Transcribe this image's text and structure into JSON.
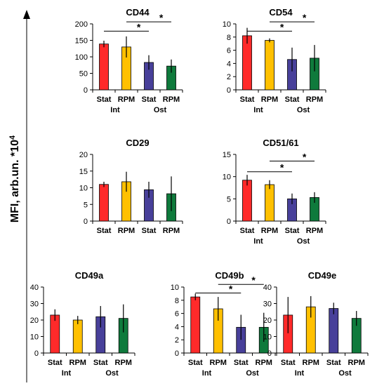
{
  "chart_data": {
    "type": "bar",
    "y_axis_label": "MFI, arb.un. *10",
    "y_axis_label_sup": "4",
    "panels": [
      {
        "title": "CD44",
        "ylim": [
          0,
          200
        ],
        "ticks": [
          0,
          50,
          100,
          150,
          200
        ],
        "categories": [
          "Stat",
          "RPM",
          "Stat",
          "RPM"
        ],
        "groups": [
          "Int",
          "Ost"
        ],
        "values": [
          139,
          130,
          83,
          72
        ],
        "errors": [
          10,
          32,
          22,
          20
        ],
        "significance": [
          {
            "from": 0,
            "to": 2,
            "y": 178,
            "label": "*"
          },
          {
            "from": 1,
            "to": 3,
            "y": 206,
            "label": "*"
          }
        ]
      },
      {
        "title": "CD54",
        "ylim": [
          0,
          10
        ],
        "ticks": [
          0,
          2,
          4,
          6,
          8,
          10
        ],
        "categories": [
          "Stat",
          "RPM",
          "Stat",
          "RPM"
        ],
        "groups": [
          "Int",
          "Ost"
        ],
        "values": [
          8.2,
          7.5,
          4.6,
          4.8
        ],
        "errors": [
          1.2,
          0.3,
          1.8,
          2.0
        ],
        "significance": [
          {
            "from": 0,
            "to": 2,
            "y": 8.9,
            "label": "*"
          },
          {
            "from": 1,
            "to": 3,
            "y": 10.3,
            "label": "*"
          }
        ]
      },
      {
        "title": "CD29",
        "ylim": [
          0,
          20
        ],
        "ticks": [
          0,
          5,
          10,
          15,
          20
        ],
        "categories": [
          "Stat",
          "RPM",
          "Stat",
          "RPM"
        ],
        "groups": [],
        "values": [
          11,
          11.8,
          9.4,
          8.2
        ],
        "errors": [
          0.8,
          3.0,
          2.4,
          5.2
        ],
        "significance": []
      },
      {
        "title": "CD51/61",
        "ylim": [
          0,
          15
        ],
        "ticks": [
          0,
          5,
          10,
          15
        ],
        "categories": [
          "Stat",
          "RPM",
          "Stat",
          "RPM"
        ],
        "groups": [
          "Int",
          "Ost"
        ],
        "values": [
          9.2,
          8.2,
          5.0,
          5.3
        ],
        "errors": [
          1.2,
          1.0,
          1.2,
          1.2
        ],
        "significance": [
          {
            "from": 0,
            "to": 2,
            "y": 11.1,
            "label": "*"
          },
          {
            "from": 1,
            "to": 3,
            "y": 13.5,
            "label": "*"
          }
        ]
      },
      {
        "title": "CD49a",
        "ylim": [
          0,
          40
        ],
        "ticks": [
          0,
          10,
          20,
          30,
          40
        ],
        "categories": [
          "Stat",
          "RPM",
          "Stat",
          "RPM"
        ],
        "groups": [
          "Int",
          "Ost"
        ],
        "values": [
          23,
          20,
          22,
          21
        ],
        "errors": [
          3.5,
          2.5,
          6.5,
          8.5
        ],
        "significance": []
      },
      {
        "title": "CD49b",
        "ylim": [
          0,
          10
        ],
        "ticks": [
          0,
          2,
          4,
          6,
          8,
          10
        ],
        "categories": [
          "Stat",
          "RPM",
          "Stat",
          "RPM"
        ],
        "groups": [
          "Int",
          "Ost"
        ],
        "values": [
          8.5,
          6.7,
          3.9,
          3.9
        ],
        "errors": [
          0.5,
          1.8,
          1.9,
          2.2
        ],
        "significance": [
          {
            "from": 0,
            "to": 2,
            "y": 9.1,
            "label": "*"
          },
          {
            "from": 1,
            "to": 3,
            "y": 10.4,
            "label": "*"
          }
        ]
      },
      {
        "title": "CD49e",
        "ylim": [
          0,
          40
        ],
        "ticks": [
          0,
          10,
          20,
          30,
          40
        ],
        "categories": [
          "Stat",
          "RPM",
          "Stat",
          "RPM"
        ],
        "groups": [
          "Int",
          "Ost"
        ],
        "values": [
          23,
          28,
          27,
          21
        ],
        "errors": [
          11,
          6.5,
          3.5,
          4.5
        ],
        "significance": []
      }
    ],
    "colors": [
      "#ff2a2a",
      "#ffc000",
      "#48409a",
      "#0f7a3c"
    ],
    "grid": false,
    "legend": "none"
  }
}
